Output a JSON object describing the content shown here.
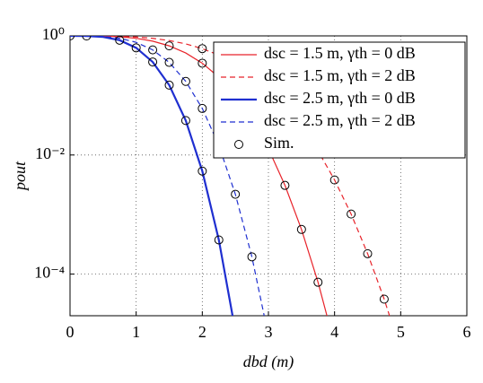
{
  "chart_data": {
    "type": "line",
    "xlabel": "dbd (m)",
    "ylabel": "pout",
    "xlim": [
      0,
      6
    ],
    "xticks": [
      0,
      1,
      2,
      3,
      4,
      5,
      6
    ],
    "ylim": [
      2e-05,
      1
    ],
    "yticks": [
      {
        "value": 1,
        "label": "10⁰"
      },
      {
        "value": 0.01,
        "label": "10⁻²"
      },
      {
        "value": 0.0001,
        "label": "10⁻⁴"
      }
    ],
    "log_y": true,
    "grid": true,
    "legend": "upper right",
    "x": [
      0,
      0.25,
      0.5,
      0.75,
      1,
      1.25,
      1.5,
      1.75,
      2,
      2.25,
      2.5,
      2.75,
      3,
      3.25,
      3.5,
      3.75,
      4,
      4.25,
      4.5,
      4.75,
      5
    ],
    "series": [
      {
        "name": "dsc = 1.5 m, γth = 0 dB",
        "color": "#e8232a",
        "linestyle": "solid",
        "linewidth": 1.2,
        "values": [
          1,
          0.999,
          0.992,
          0.967,
          0.911,
          0.816,
          0.68,
          0.516,
          0.348,
          0.203,
          0.1,
          0.0402,
          0.0127,
          0.00309,
          0.000562,
          7.3e-05,
          6.6e-06,
          null,
          null,
          null,
          null
        ]
      },
      {
        "name": "dsc = 1.5 m, γth = 2 dB",
        "color": "#e8232a",
        "linestyle": "dashed",
        "linewidth": 1.2,
        "values": [
          1,
          0.999,
          0.996,
          0.984,
          0.957,
          0.909,
          0.835,
          0.734,
          0.611,
          0.475,
          0.341,
          0.223,
          0.13,
          0.0675,
          0.0305,
          0.0117,
          0.00381,
          0.00102,
          0.00022,
          3.8e-05,
          5.2e-06
        ]
      },
      {
        "name": "dsc = 2.5 m, γth = 0 dB",
        "color": "#1f2fd0",
        "linestyle": "solid",
        "linewidth": 2.2,
        "values": [
          1,
          0.996,
          0.96,
          0.845,
          0.63,
          0.365,
          0.149,
          0.0379,
          0.00537,
          0.000375,
          1.1e-05,
          null,
          null,
          null,
          null,
          null,
          null,
          null,
          null,
          null,
          null
        ]
      },
      {
        "name": "dsc = 2.5 m, γth = 2 dB",
        "color": "#1f2fd0",
        "linestyle": "dashed",
        "linewidth": 1.2,
        "values": [
          1,
          0.998,
          0.978,
          0.913,
          0.78,
          0.582,
          0.359,
          0.172,
          0.0604,
          0.0145,
          0.00219,
          0.000195,
          9.1e-06,
          null,
          null,
          null,
          null,
          null,
          null,
          null,
          null
        ]
      }
    ],
    "sim": {
      "name": "Sim.",
      "color": "#000000",
      "x": [
        0,
        0.25,
        0.75,
        1,
        1.25,
        1.5,
        1.75,
        2,
        2.25,
        1.25,
        1.5,
        1.75,
        2,
        2.25,
        2.5,
        2.75,
        1.5,
        2,
        2.5,
        2.75,
        3,
        3.25,
        3.5,
        3.75,
        2,
        2.5,
        3,
        3.5,
        3.75,
        4,
        4.25,
        4.5,
        4.75
      ],
      "values": [
        1,
        0.996,
        0.845,
        0.63,
        0.365,
        0.149,
        0.0379,
        0.00537,
        0.000375,
        0.582,
        0.359,
        0.172,
        0.0604,
        0.0145,
        0.00219,
        0.000195,
        0.68,
        0.348,
        0.1,
        0.0402,
        0.0127,
        0.00309,
        0.000562,
        7.3e-05,
        0.611,
        0.341,
        0.13,
        0.0305,
        0.0117,
        0.00381,
        0.00102,
        0.00022,
        3.8e-05
      ]
    }
  }
}
